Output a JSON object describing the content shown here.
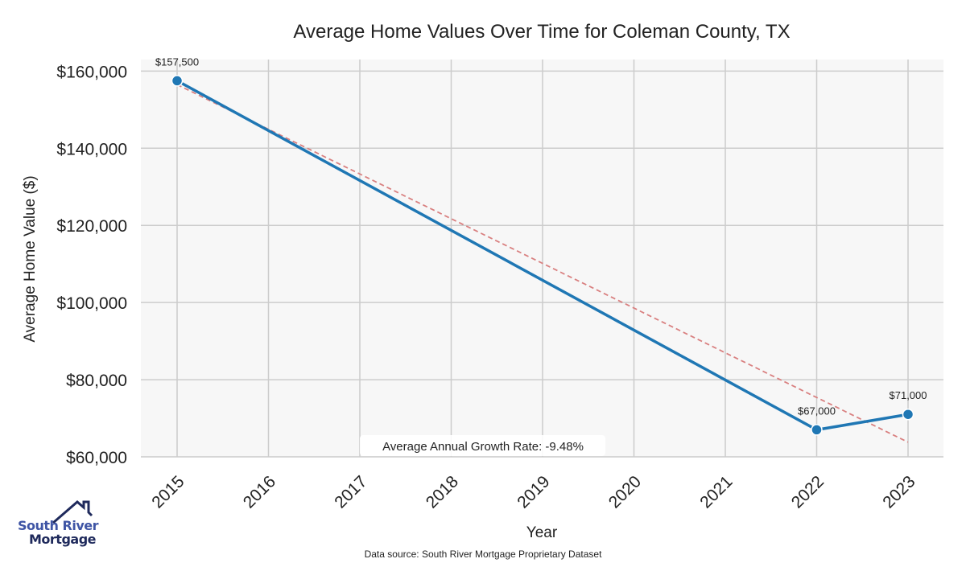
{
  "chart_data": {
    "type": "line",
    "title": "Average Home Values Over Time for Coleman County, TX",
    "xlabel": "Year",
    "ylabel": "Average Home Value ($)",
    "x": [
      2015,
      2022,
      2023
    ],
    "xticks": [
      "2015",
      "2016",
      "2017",
      "2018",
      "2019",
      "2020",
      "2021",
      "2022",
      "2023"
    ],
    "yticks": [
      60000,
      80000,
      100000,
      120000,
      140000,
      160000
    ],
    "ytick_labels": [
      "$60,000",
      "$80,000",
      "$100,000",
      "$120,000",
      "$140,000",
      "$160,000"
    ],
    "ylim": [
      60000,
      163000
    ],
    "xlim": [
      2014.6,
      2023.4
    ],
    "series": [
      {
        "name": "Average Home Value",
        "color": "#1f77b4",
        "values": [
          157500,
          67000,
          71000
        ],
        "labels": [
          "$157,500",
          "$67,000",
          "$71,000"
        ]
      },
      {
        "name": "Trend",
        "color": "#d98080",
        "style": "dashed",
        "x": [
          2015,
          2023
        ],
        "values": [
          156500,
          63800
        ]
      }
    ],
    "annotation": "Average Annual Growth Rate: -9.48%",
    "grid": true,
    "source": "Data source: South River Mortgage Proprietary Dataset"
  },
  "logo": {
    "line1": "South River",
    "line2": "Mortgage"
  }
}
